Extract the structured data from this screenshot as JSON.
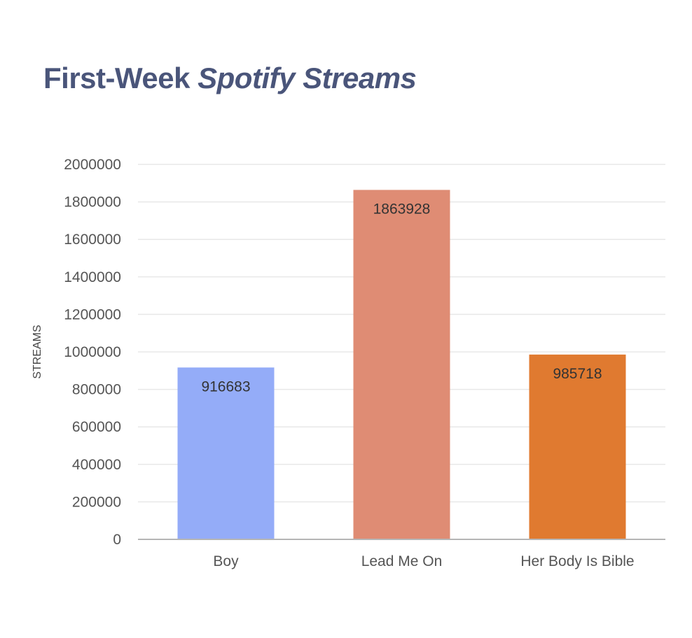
{
  "title_part1": "First-Week ",
  "title_part2": "Spotify Streams",
  "chart_data": {
    "type": "bar",
    "title": "First-Week Spotify Streams",
    "categories": [
      "Boy",
      "Lead Me On",
      "Her Body Is Bible"
    ],
    "values": [
      916683,
      1863928,
      985718
    ],
    "colors": [
      "#94acf8",
      "#df8c74",
      "#e07a30"
    ],
    "data_labels": [
      "916683",
      "1863928",
      "985718"
    ],
    "xlabel": "",
    "ylabel": "STREAMS",
    "ylim": [
      0,
      2000000
    ],
    "yticks": [
      0,
      200000,
      400000,
      600000,
      800000,
      1000000,
      1200000,
      1400000,
      1600000,
      1800000,
      2000000
    ],
    "grid": true,
    "legend": "none"
  }
}
